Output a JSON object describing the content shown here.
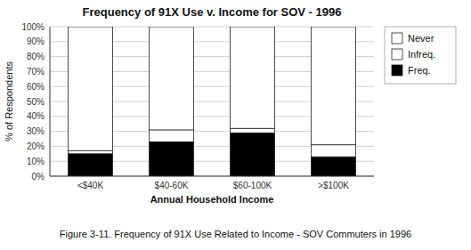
{
  "chart_data": {
    "type": "bar",
    "stacked": true,
    "title": "Frequency of 91X Use v. Income for SOV - 1996",
    "x_label": "Annual Household Income",
    "y_label": "% of Respondents",
    "caption": "Figure 3-11. Frequency of 91X Use Related to Income - SOV Commuters in 1996",
    "categories": [
      "<$40K",
      "$40-60K",
      "$60-100K",
      ">$100K"
    ],
    "series": [
      {
        "name": "Freq.",
        "color": "#000000",
        "values": [
          15,
          23,
          29,
          13
        ]
      },
      {
        "name": "Infreq.",
        "color": "#ffffff",
        "values": [
          2,
          8,
          3,
          8
        ]
      },
      {
        "name": "Never",
        "color": "#ffffff",
        "values": [
          83,
          69,
          68,
          79
        ]
      }
    ],
    "ylim": [
      0,
      100
    ],
    "yticks": [
      {
        "value": 0,
        "label": "0%"
      },
      {
        "value": 10,
        "label": "10%"
      },
      {
        "value": 20,
        "label": "20%"
      },
      {
        "value": 30,
        "label": "30%"
      },
      {
        "value": 40,
        "label": "40%"
      },
      {
        "value": 50,
        "label": "50%"
      },
      {
        "value": 60,
        "label": "60%"
      },
      {
        "value": 70,
        "label": "70%"
      },
      {
        "value": 80,
        "label": "80%"
      },
      {
        "value": 90,
        "label": "90%"
      },
      {
        "value": 100,
        "label": "100%"
      }
    ],
    "grid": true,
    "legend": "right"
  }
}
